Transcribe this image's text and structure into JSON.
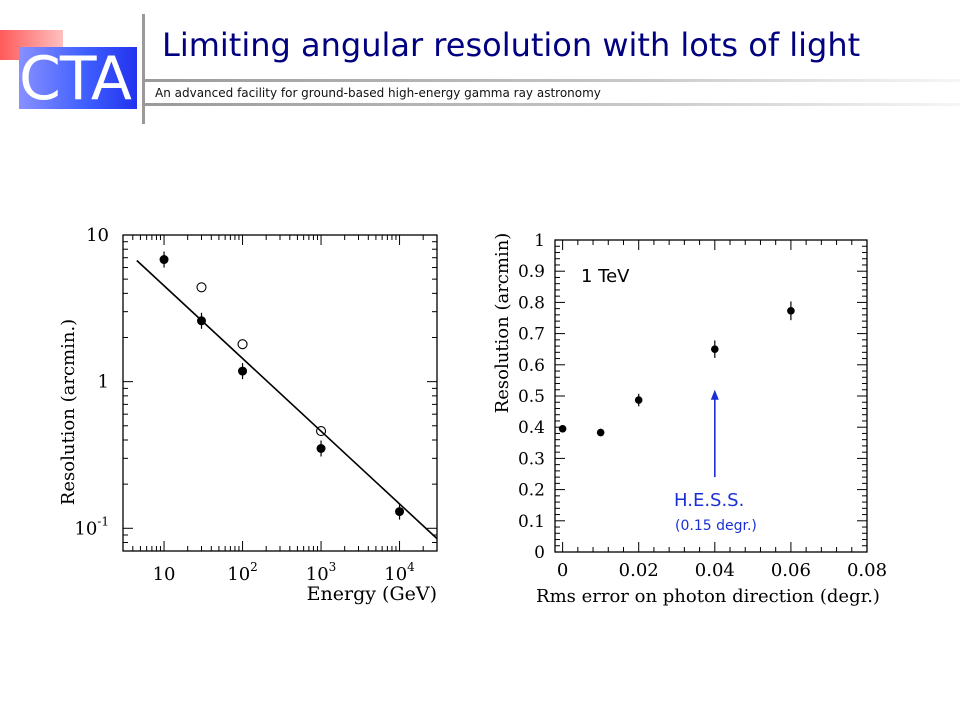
{
  "header": {
    "logo_text": "CTA",
    "title": "Limiting angular resolution with lots of light",
    "subtitle": "An advanced facility for ground-based high-energy gamma ray astronomy"
  },
  "colors": {
    "title": "#000080",
    "logo_blue": "#3a55ff",
    "logo_red": "#ff5a5a",
    "annotation_blue": "#1a2fd8"
  },
  "chart_data": [
    {
      "type": "scatter",
      "xlabel": "Energy (GeV)",
      "ylabel": "Resolution (arcmin.)",
      "x_scale": "log",
      "y_scale": "log",
      "xlim": [
        3,
        30000
      ],
      "ylim": [
        0.07,
        10
      ],
      "x_tick_labels": [
        {
          "value": 10,
          "base": "10",
          "exp": ""
        },
        {
          "value": 100,
          "base": "10",
          "exp": "2"
        },
        {
          "value": 1000,
          "base": "10",
          "exp": "3"
        },
        {
          "value": 10000,
          "base": "10",
          "exp": "4"
        }
      ],
      "y_tick_labels": [
        {
          "value": 10,
          "base": "10",
          "exp": ""
        },
        {
          "value": 1,
          "base": "1",
          "exp": ""
        },
        {
          "value": 0.1,
          "base": "10",
          "exp": "-1"
        }
      ],
      "series": [
        {
          "marker": "filled-circle",
          "x": [
            10,
            30,
            100,
            1000,
            10000
          ],
          "y": [
            6.8,
            2.6,
            1.18,
            0.35,
            0.13
          ]
        },
        {
          "marker": "open-circle",
          "x": [
            30,
            100,
            1000
          ],
          "y": [
            4.4,
            1.8,
            0.46
          ]
        },
        {
          "marker": "line",
          "x": [
            4.5,
            30000
          ],
          "y": [
            6.7,
            0.085
          ]
        }
      ]
    },
    {
      "type": "scatter",
      "xlabel": "Rms error on photon direction (degr.)",
      "ylabel": "Resolution (arcmin)",
      "xlim": [
        -0.002,
        0.08
      ],
      "ylim": [
        0,
        1
      ],
      "x_ticks": [
        "0",
        "0.02",
        "0.04",
        "0.06",
        "0.08"
      ],
      "y_ticks": [
        "0",
        "0.1",
        "0.2",
        "0.3",
        "0.4",
        "0.5",
        "0.6",
        "0.7",
        "0.8",
        "0.9",
        "1"
      ],
      "annotation": "1 TeV",
      "series": [
        {
          "marker": "filled-circle",
          "x": [
            0,
            0.01,
            0.02,
            0.04,
            0.06
          ],
          "y": [
            0.395,
            0.383,
            0.487,
            0.65,
            0.773
          ],
          "yerr": [
            0.012,
            0.012,
            0.02,
            0.028,
            0.03
          ]
        }
      ],
      "arrow": {
        "x": 0.04,
        "y_from": 0.24,
        "y_to": 0.52
      },
      "arrow_label": "H.E.S.S.",
      "arrow_sublabel": "(0.15 degr.)"
    }
  ]
}
